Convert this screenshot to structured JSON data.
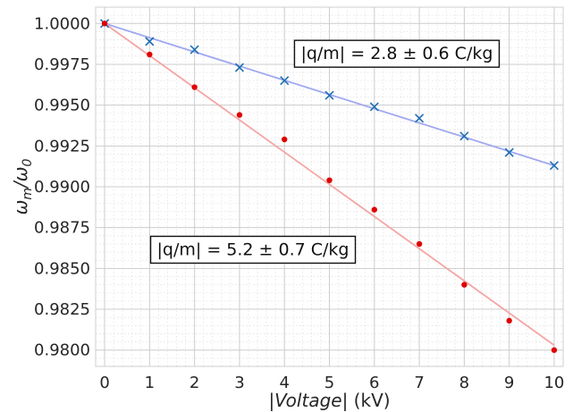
{
  "chart_data": {
    "type": "scatter",
    "xlabel_main": "|Voltage|",
    "xlabel_unit": " (kV)",
    "ylabel_main": "ω",
    "ylabel_sub1": "m",
    "ylabel_sep": "/ω",
    "ylabel_sub2": "0",
    "xlim": [
      -0.2,
      10.2
    ],
    "ylim": [
      0.979,
      1.001
    ],
    "x_ticks": [
      0,
      1,
      2,
      3,
      4,
      5,
      6,
      7,
      8,
      9,
      10
    ],
    "y_ticks": [
      0.98,
      0.9825,
      0.985,
      0.9875,
      0.99,
      0.9925,
      0.995,
      0.9975,
      1.0
    ],
    "y_tick_labels": [
      "0.9800",
      "0.9825",
      "0.9850",
      "0.9875",
      "0.9900",
      "0.9925",
      "0.9950",
      "0.9975",
      "1.0000"
    ],
    "grid": true,
    "minor_grid": true,
    "series": [
      {
        "marker": "x",
        "color": "#1f6fb4",
        "x": [
          0,
          1,
          2,
          3,
          4,
          5,
          6,
          7,
          8,
          9,
          10
        ],
        "y": [
          1.0,
          0.9989,
          0.9984,
          0.9973,
          0.9965,
          0.9956,
          0.9949,
          0.9942,
          0.9931,
          0.9921,
          0.9913
        ],
        "fit": {
          "color": "#a0a8f0",
          "x": [
            0,
            10
          ],
          "y": [
            1.0,
            0.9913
          ]
        }
      },
      {
        "marker": "dot",
        "color": "#e00000",
        "x": [
          0,
          1,
          2,
          3,
          4,
          5,
          6,
          7,
          8,
          9,
          10
        ],
        "y": [
          1.0,
          0.9981,
          0.9961,
          0.9944,
          0.9929,
          0.9904,
          0.9886,
          0.9865,
          0.984,
          0.9818,
          0.98
        ],
        "fit": {
          "color": "#f5a5a5",
          "x": [
            0,
            10
          ],
          "y": [
            1.0,
            0.9803
          ]
        }
      }
    ],
    "annotations": [
      {
        "text": "|q/m| = 2.8 ± 0.6 C/kg",
        "x": 6.5,
        "y": 0.9982
      },
      {
        "text": "|q/m| = 5.2 ± 0.7 C/kg",
        "x": 3.3,
        "y": 0.9862
      }
    ]
  }
}
